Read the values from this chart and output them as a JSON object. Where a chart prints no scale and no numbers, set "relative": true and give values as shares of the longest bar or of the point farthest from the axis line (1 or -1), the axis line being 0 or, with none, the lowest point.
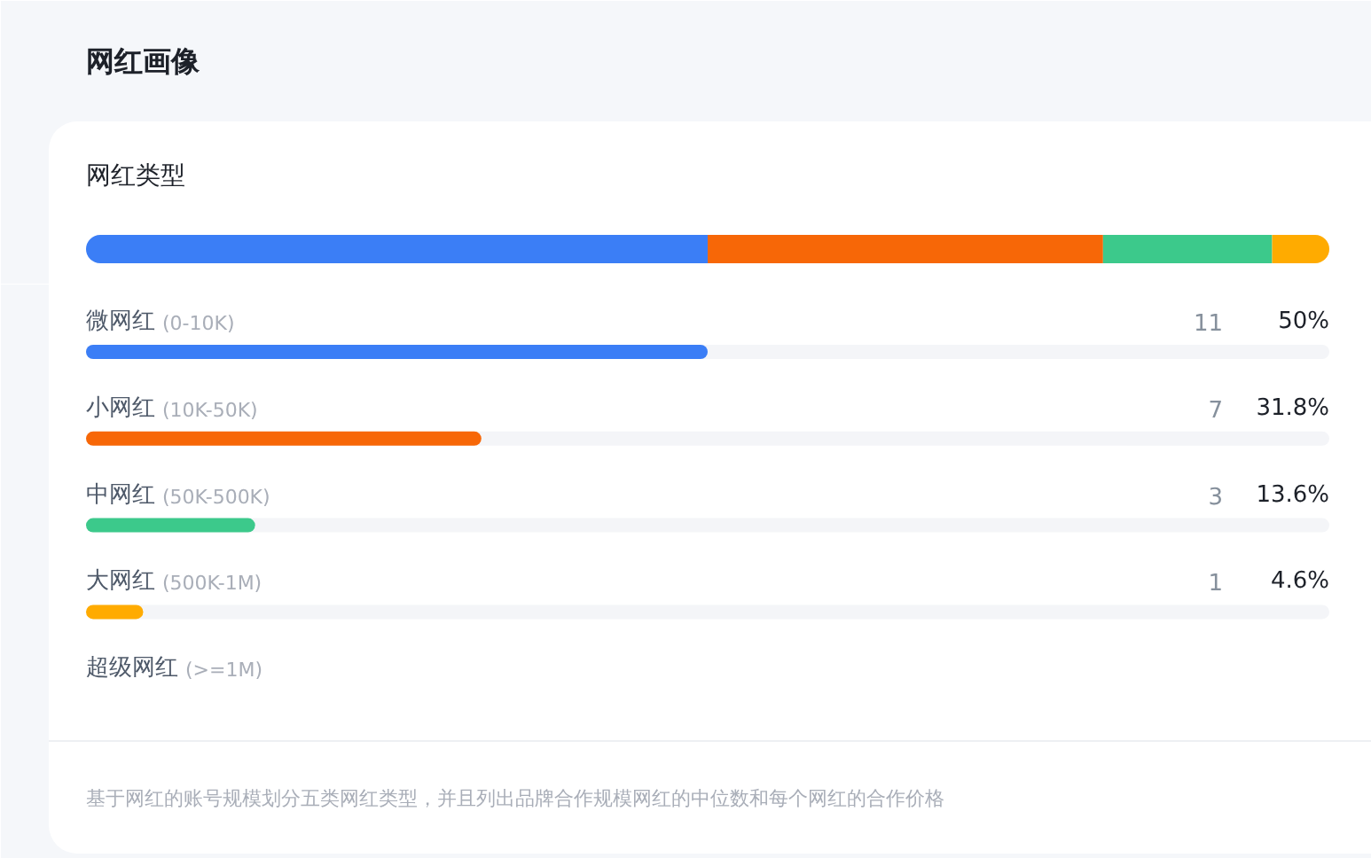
{
  "chart_data": [
    {
      "type": "bar",
      "title": "网红画像",
      "subtitle": "网红类型",
      "orientation": "horizontal",
      "stacked": true,
      "relative": true,
      "categories": [
        null
      ],
      "series": [
        {
          "color": "#3b7ef6",
          "values": [
            0.5
          ]
        },
        {
          "color": "#f76707",
          "values": [
            0.318
          ]
        },
        {
          "color": "#3cc98b",
          "values": [
            0.136
          ]
        },
        {
          "color": "#ffab00",
          "values": [
            0.046
          ]
        }
      ]
    },
    {
      "type": "bar",
      "orientation": "horizontal",
      "categories": [
        "微网红 (0-10K)",
        "小网红 (10K-50K)",
        "中网红 (50K-500K)",
        "大网红 (500K-1M)",
        "超级网红 (>=1M)"
      ],
      "values": [
        50,
        31.8,
        13.6,
        4.6,
        null
      ],
      "value_labels": [
        "50%",
        "31.8%",
        "13.6%",
        "4.6%",
        null
      ],
      "colors": [
        "#3b7ef6",
        "#f76707",
        "#3cc98b",
        "#ffab00",
        null
      ],
      "xlim": [
        0,
        100
      ],
      "annotations": [
        "11",
        "7",
        "3",
        "1",
        "基于网红的账号规模划分五类网红类型，并且列出品牌合作规模网红的中位数和每个网红的合作价格"
      ]
    }
  ]
}
